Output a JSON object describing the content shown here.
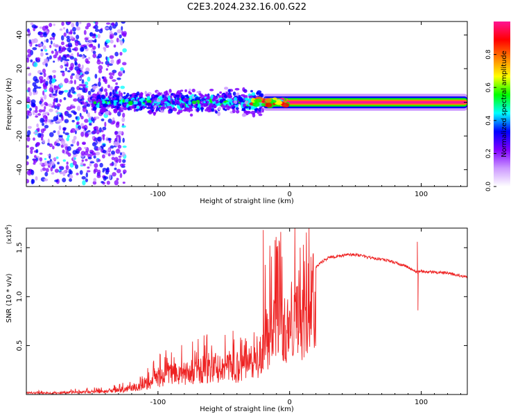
{
  "title": "C2E3.2024.232.16.00.G22",
  "chart_data": [
    {
      "type": "heatmap",
      "name": "spectrogram",
      "xlabel": "Height of straight line (km)",
      "ylabel": "Frequency (Hz)",
      "xlim": [
        -200,
        135
      ],
      "ylim": [
        -50,
        48
      ],
      "xticks": [
        -100,
        0,
        100
      ],
      "yticks": [
        -40,
        -20,
        0,
        20,
        40
      ],
      "colorbar": {
        "label": "Normalized spectral amplitude",
        "range": [
          0.0,
          1.0
        ],
        "ticks": [
          "0.0",
          "0.2",
          "0.4",
          "0.6",
          "0.8"
        ],
        "colors": [
          "#ffffff",
          "#cc99ff",
          "#8000ff",
          "#0000ff",
          "#00ffff",
          "#00ff00",
          "#ffff00",
          "#ff8000",
          "#ff0000",
          "#ff1493"
        ]
      },
      "bands": [
        {
          "x_start": -200,
          "x_end": -125,
          "freq_spread": 48,
          "amplitude": 0.3,
          "note": "broadband scattered noise"
        },
        {
          "x_start": -150,
          "x_end": -20,
          "freq_spread": 10,
          "amplitude": 0.45,
          "note": "turbulent signal around 0 Hz"
        },
        {
          "x_start": -20,
          "x_end": 135,
          "freq_spread": 2,
          "amplitude": 1.0,
          "note": "stable carrier near 0 Hz"
        }
      ]
    },
    {
      "type": "line",
      "name": "snr",
      "xlabel": "Height of straight line (km)",
      "ylabel": "SNR (10 * v/v)",
      "yscale_label": "(x10",
      "yscale_exponent": "4",
      "yscale_suffix": ")",
      "xlim": [
        -200,
        135
      ],
      "ylim": [
        0,
        1.7
      ],
      "xticks": [
        -100,
        0,
        100
      ],
      "yticks": [
        "0.5",
        "1.0",
        "1.5"
      ],
      "color": "#ee2222",
      "series": [
        {
          "name": "SNR",
          "x": [
            -200,
            -180,
            -160,
            -140,
            -125,
            -110,
            -100,
            -90,
            -80,
            -70,
            -60,
            -50,
            -40,
            -30,
            -25,
            -20,
            -18,
            -15,
            -10,
            -5,
            0,
            5,
            10,
            15,
            20,
            25,
            30,
            40,
            50,
            60,
            70,
            80,
            90,
            96,
            98,
            100,
            110,
            120,
            135
          ],
          "y": [
            0.02,
            0.02,
            0.03,
            0.04,
            0.06,
            0.12,
            0.2,
            0.25,
            0.28,
            0.3,
            0.32,
            0.33,
            0.34,
            0.35,
            0.45,
            0.55,
            0.7,
            0.75,
            0.8,
            0.82,
            0.85,
            0.9,
            1.0,
            1.15,
            1.3,
            1.36,
            1.4,
            1.42,
            1.43,
            1.4,
            1.38,
            1.35,
            1.3,
            1.25,
            1.25,
            1.26,
            1.25,
            1.24,
            1.2
          ]
        }
      ],
      "spikes": [
        {
          "x": -20,
          "y": 1.68
        },
        {
          "x": -15,
          "y": 1.52
        },
        {
          "x": 8,
          "y": 1.5
        },
        {
          "x": 11,
          "y": 0.38
        },
        {
          "x": 97,
          "y": 1.56
        },
        {
          "x": 97.5,
          "y": 0.86
        }
      ]
    }
  ]
}
